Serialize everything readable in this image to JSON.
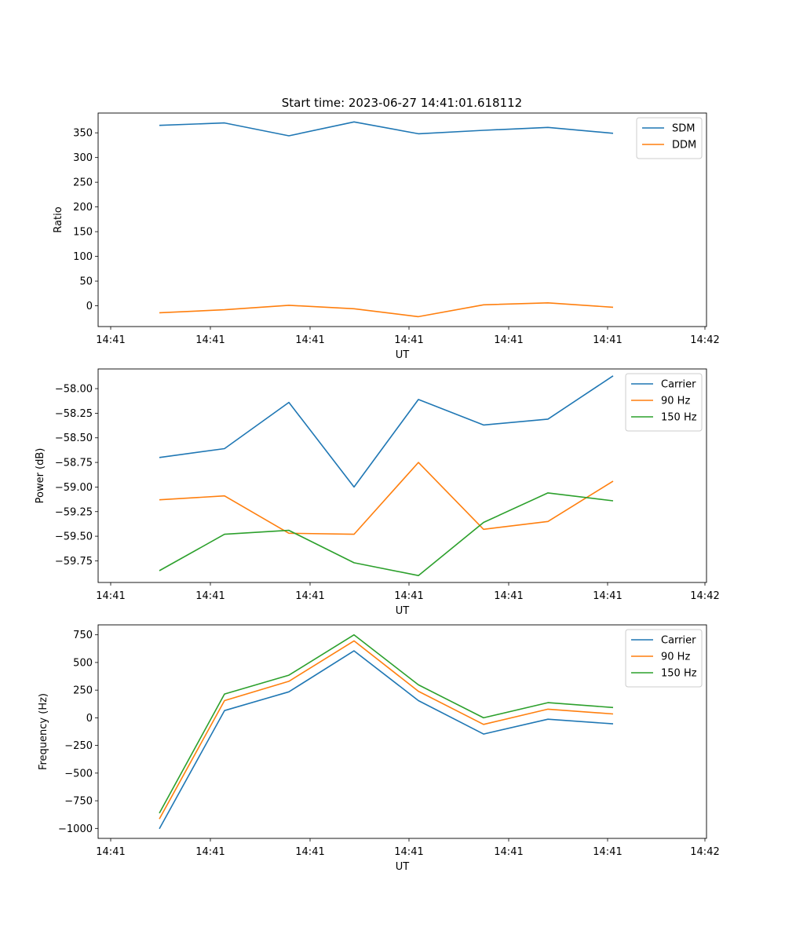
{
  "figure": {
    "title": "Start time: 2023-06-27 14:41:01.618112"
  },
  "colors": {
    "series1": "#1f77b4",
    "series2": "#ff7f0e",
    "series3": "#2ca02c"
  },
  "chart_data": [
    {
      "type": "line",
      "xlabel": "UT",
      "ylabel": "Ratio",
      "x_tick_labels": [
        "14:41",
        "14:41",
        "14:41",
        "14:41",
        "14:41",
        "14:41",
        "14:41"
      ],
      "x_tick_end_label": "14:42",
      "ylim": [
        -42,
        390
      ],
      "y_ticks": [
        0,
        50,
        100,
        150,
        200,
        250,
        300,
        350
      ],
      "y_tick_labels": [
        "0",
        "50",
        "100",
        "150",
        "200",
        "250",
        "300",
        "350"
      ],
      "legend_position": "top-right",
      "grid": false,
      "series": [
        {
          "name": "SDM",
          "values": [
            365,
            370,
            344,
            372,
            348,
            355,
            361,
            349
          ]
        },
        {
          "name": "DDM",
          "values": [
            -14,
            -8,
            1,
            -6,
            -22,
            2,
            6,
            -3
          ]
        }
      ]
    },
    {
      "type": "line",
      "xlabel": "UT",
      "ylabel": "Power (dB)",
      "x_tick_labels": [
        "14:41",
        "14:41",
        "14:41",
        "14:41",
        "14:41",
        "14:41",
        "14:41"
      ],
      "x_tick_end_label": "14:42",
      "ylim": [
        -59.97,
        -57.8
      ],
      "y_ticks": [
        -59.75,
        -59.5,
        -59.25,
        -59.0,
        -58.75,
        -58.5,
        -58.25,
        -58.0
      ],
      "y_tick_labels": [
        "−59.75",
        "−59.50",
        "−59.25",
        "−59.00",
        "−58.75",
        "−58.50",
        "−58.25",
        "−58.00"
      ],
      "legend_position": "top-right",
      "grid": false,
      "series": [
        {
          "name": "Carrier",
          "values": [
            -58.7,
            -58.61,
            -58.14,
            -59.0,
            -58.11,
            -58.37,
            -58.31,
            -57.87
          ]
        },
        {
          "name": "90 Hz",
          "values": [
            -59.13,
            -59.09,
            -59.47,
            -59.48,
            -58.75,
            -59.43,
            -59.35,
            -58.94
          ]
        },
        {
          "name": "150 Hz",
          "values": [
            -59.85,
            -59.48,
            -59.44,
            -59.77,
            -59.9,
            -59.36,
            -59.06,
            -59.14
          ]
        }
      ]
    },
    {
      "type": "line",
      "xlabel": "UT",
      "ylabel": "Frequency (Hz)",
      "x_tick_labels": [
        "14:41",
        "14:41",
        "14:41",
        "14:41",
        "14:41",
        "14:41",
        "14:41"
      ],
      "x_tick_end_label": "14:42",
      "ylim": [
        -1090,
        840
      ],
      "y_ticks": [
        -1000,
        -750,
        -500,
        -250,
        0,
        250,
        500,
        750
      ],
      "y_tick_labels": [
        "−1000",
        "−750",
        "−500",
        "−250",
        "0",
        "250",
        "500",
        "750"
      ],
      "legend_position": "top-right",
      "grid": false,
      "series": [
        {
          "name": "Carrier",
          "values": [
            -1003,
            65,
            235,
            605,
            155,
            -147,
            -13,
            -55
          ]
        },
        {
          "name": "90 Hz",
          "values": [
            -915,
            155,
            330,
            695,
            240,
            -60,
            78,
            35
          ]
        },
        {
          "name": "150 Hz",
          "values": [
            -862,
            215,
            385,
            750,
            298,
            0,
            137,
            93
          ]
        }
      ]
    }
  ]
}
